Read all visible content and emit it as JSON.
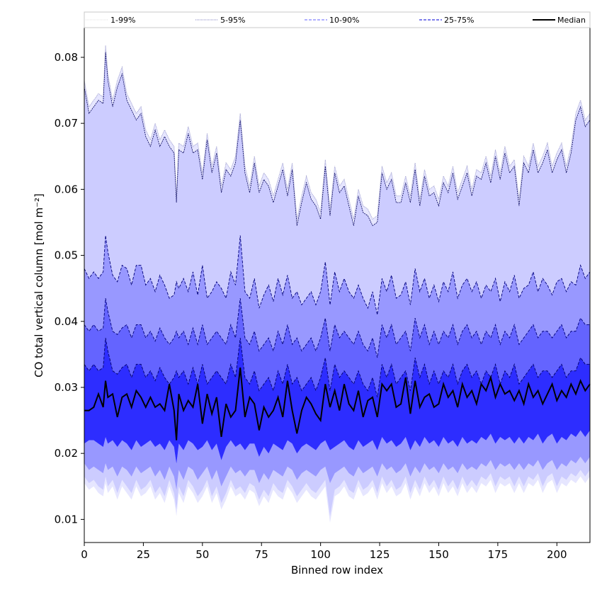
{
  "chart_data": {
    "type": "area",
    "title": "",
    "xlabel": "Binned row index",
    "ylabel": "CO total vertical column [mol m⁻²]",
    "xlim": [
      0,
      214
    ],
    "ylim": [
      0.0065,
      0.0845
    ],
    "xticks": [
      0,
      25,
      50,
      75,
      100,
      125,
      150,
      175,
      200
    ],
    "yticks": [
      0.01,
      0.02,
      0.03,
      0.04,
      0.05,
      0.06,
      0.07,
      0.08
    ],
    "yticks_labels": [
      "0.01",
      "0.02",
      "0.03",
      "0.04",
      "0.05",
      "0.06",
      "0.07",
      "0.08"
    ],
    "grid": false,
    "legend_position": "top, spanning full width above plot",
    "legend": [
      {
        "name": "1-99%",
        "style": "dotted",
        "color": "#e0e0e0"
      },
      {
        "name": "5-95%",
        "style": "dotted",
        "color": "#8080c0"
      },
      {
        "name": "10-90%",
        "style": "dashed",
        "color": "#8080ff"
      },
      {
        "name": "25-75%",
        "style": "dashed",
        "color": "#3030e0"
      },
      {
        "name": "Median",
        "style": "solid",
        "color": "#000000"
      }
    ],
    "band_colors": [
      "#ccccff",
      "#9898ff",
      "#6464ff",
      "#2d2dff"
    ],
    "x": [
      0,
      2,
      4,
      6,
      8,
      9,
      10,
      12,
      14,
      16,
      18,
      20,
      22,
      24,
      26,
      28,
      30,
      32,
      34,
      36,
      38,
      39,
      40,
      42,
      44,
      46,
      48,
      50,
      52,
      54,
      56,
      58,
      60,
      62,
      64,
      66,
      68,
      70,
      72,
      74,
      76,
      78,
      80,
      82,
      84,
      86,
      88,
      90,
      92,
      94,
      96,
      98,
      100,
      102,
      104,
      106,
      108,
      110,
      112,
      114,
      116,
      118,
      120,
      122,
      124,
      126,
      128,
      130,
      132,
      134,
      136,
      138,
      140,
      142,
      144,
      146,
      148,
      150,
      152,
      154,
      156,
      158,
      160,
      162,
      164,
      166,
      168,
      170,
      172,
      174,
      176,
      178,
      180,
      182,
      184,
      186,
      188,
      190,
      192,
      194,
      196,
      198,
      200,
      202,
      204,
      206,
      208,
      210,
      212,
      214
    ],
    "p95": [
      0.0755,
      0.0715,
      0.0725,
      0.0735,
      0.073,
      0.0808,
      0.0765,
      0.0725,
      0.0755,
      0.0775,
      0.0735,
      0.072,
      0.0705,
      0.0715,
      0.068,
      0.0665,
      0.069,
      0.0665,
      0.068,
      0.0665,
      0.0655,
      0.058,
      0.066,
      0.0655,
      0.0685,
      0.0655,
      0.066,
      0.0615,
      0.0675,
      0.0625,
      0.0655,
      0.0595,
      0.063,
      0.062,
      0.064,
      0.0705,
      0.0625,
      0.0595,
      0.064,
      0.0595,
      0.0615,
      0.0605,
      0.058,
      0.0605,
      0.063,
      0.059,
      0.063,
      0.0545,
      0.058,
      0.061,
      0.0585,
      0.0575,
      0.0555,
      0.0635,
      0.056,
      0.0625,
      0.0595,
      0.0605,
      0.0575,
      0.0545,
      0.059,
      0.0565,
      0.056,
      0.0545,
      0.055,
      0.0625,
      0.06,
      0.0615,
      0.058,
      0.058,
      0.061,
      0.058,
      0.063,
      0.0575,
      0.062,
      0.059,
      0.0595,
      0.0575,
      0.061,
      0.0595,
      0.0625,
      0.0585,
      0.0605,
      0.0625,
      0.059,
      0.062,
      0.0615,
      0.064,
      0.061,
      0.065,
      0.0615,
      0.0655,
      0.0625,
      0.0635,
      0.0575,
      0.064,
      0.0625,
      0.066,
      0.0625,
      0.064,
      0.066,
      0.0625,
      0.0645,
      0.066,
      0.0625,
      0.0655,
      0.0705,
      0.0725,
      0.0695,
      0.0705
    ],
    "p90": [
      0.048,
      0.0465,
      0.0475,
      0.0465,
      0.0475,
      0.053,
      0.0505,
      0.047,
      0.046,
      0.0485,
      0.048,
      0.0455,
      0.0485,
      0.0485,
      0.0455,
      0.0465,
      0.0445,
      0.047,
      0.0455,
      0.0435,
      0.044,
      0.046,
      0.045,
      0.0465,
      0.0445,
      0.0475,
      0.044,
      0.0485,
      0.0435,
      0.0445,
      0.046,
      0.045,
      0.0435,
      0.0475,
      0.0455,
      0.053,
      0.0445,
      0.0435,
      0.0465,
      0.042,
      0.044,
      0.0455,
      0.043,
      0.0465,
      0.044,
      0.047,
      0.0435,
      0.0445,
      0.0425,
      0.0435,
      0.0445,
      0.0425,
      0.0445,
      0.049,
      0.0425,
      0.0475,
      0.0445,
      0.0465,
      0.0445,
      0.0435,
      0.0455,
      0.0435,
      0.042,
      0.0445,
      0.041,
      0.0465,
      0.0445,
      0.047,
      0.0435,
      0.044,
      0.046,
      0.0425,
      0.048,
      0.0445,
      0.0465,
      0.0435,
      0.0455,
      0.043,
      0.046,
      0.0445,
      0.0475,
      0.0435,
      0.0455,
      0.0465,
      0.0445,
      0.046,
      0.0435,
      0.0455,
      0.0445,
      0.0465,
      0.043,
      0.046,
      0.0445,
      0.047,
      0.0435,
      0.045,
      0.0455,
      0.0475,
      0.0445,
      0.0465,
      0.0455,
      0.044,
      0.046,
      0.0465,
      0.0445,
      0.046,
      0.0455,
      0.0485,
      0.0465,
      0.0475
    ],
    "p75": [
      0.0395,
      0.0385,
      0.0395,
      0.0385,
      0.039,
      0.0435,
      0.0415,
      0.0385,
      0.038,
      0.039,
      0.0395,
      0.0375,
      0.0395,
      0.0395,
      0.0375,
      0.0385,
      0.037,
      0.039,
      0.0375,
      0.0365,
      0.0375,
      0.0385,
      0.0375,
      0.0385,
      0.0365,
      0.039,
      0.0365,
      0.0395,
      0.0365,
      0.0375,
      0.0385,
      0.0375,
      0.0365,
      0.0395,
      0.0375,
      0.0435,
      0.0375,
      0.0365,
      0.0385,
      0.0355,
      0.0365,
      0.0375,
      0.0355,
      0.0385,
      0.0365,
      0.0395,
      0.0365,
      0.0375,
      0.0355,
      0.0365,
      0.0375,
      0.0355,
      0.0375,
      0.0405,
      0.0355,
      0.0395,
      0.0375,
      0.0385,
      0.0375,
      0.0365,
      0.0385,
      0.0365,
      0.0355,
      0.0375,
      0.0345,
      0.0395,
      0.0375,
      0.0395,
      0.0365,
      0.0375,
      0.0385,
      0.0355,
      0.0405,
      0.0375,
      0.0395,
      0.0365,
      0.0385,
      0.0365,
      0.0385,
      0.0375,
      0.0395,
      0.0365,
      0.0385,
      0.0395,
      0.0375,
      0.0385,
      0.0365,
      0.0385,
      0.0375,
      0.0395,
      0.0365,
      0.0385,
      0.0375,
      0.0395,
      0.0365,
      0.0375,
      0.0385,
      0.0395,
      0.0375,
      0.0385,
      0.0385,
      0.0375,
      0.0385,
      0.0395,
      0.0375,
      0.0385,
      0.0385,
      0.0405,
      0.0395,
      0.0395
    ],
    "p50": [
      0.0335,
      0.0325,
      0.0335,
      0.0325,
      0.033,
      0.0375,
      0.0355,
      0.0325,
      0.032,
      0.033,
      0.0335,
      0.0315,
      0.0335,
      0.0335,
      0.0315,
      0.0325,
      0.031,
      0.033,
      0.0315,
      0.0305,
      0.0315,
      0.0325,
      0.0315,
      0.0325,
      0.0305,
      0.033,
      0.0305,
      0.0335,
      0.0305,
      0.0315,
      0.0325,
      0.0315,
      0.0305,
      0.0335,
      0.0315,
      0.0375,
      0.0315,
      0.0305,
      0.0325,
      0.0295,
      0.0305,
      0.0315,
      0.0295,
      0.0325,
      0.0305,
      0.0335,
      0.0305,
      0.0315,
      0.0295,
      0.0305,
      0.0315,
      0.0295,
      0.0315,
      0.0345,
      0.0295,
      0.0335,
      0.0315,
      0.0325,
      0.0315,
      0.0305,
      0.0325,
      0.0305,
      0.0295,
      0.0315,
      0.0285,
      0.0335,
      0.0315,
      0.0335,
      0.0305,
      0.0315,
      0.0325,
      0.0295,
      0.0345,
      0.0315,
      0.0335,
      0.0305,
      0.0325,
      0.0305,
      0.0325,
      0.0315,
      0.0335,
      0.0305,
      0.0325,
      0.0335,
      0.0315,
      0.0325,
      0.0305,
      0.0325,
      0.0315,
      0.0335,
      0.0305,
      0.0325,
      0.0315,
      0.0335,
      0.0305,
      0.0315,
      0.0325,
      0.0335,
      0.0315,
      0.0325,
      0.0325,
      0.0315,
      0.0325,
      0.0335,
      0.0315,
      0.0325,
      0.0325,
      0.0345,
      0.0335,
      0.0335
    ],
    "median": [
      0.0265,
      0.0265,
      0.027,
      0.029,
      0.027,
      0.031,
      0.0285,
      0.029,
      0.0255,
      0.0285,
      0.029,
      0.027,
      0.0295,
      0.0285,
      0.027,
      0.0285,
      0.027,
      0.0275,
      0.0265,
      0.0305,
      0.0265,
      0.022,
      0.029,
      0.0265,
      0.028,
      0.027,
      0.0305,
      0.0245,
      0.029,
      0.026,
      0.0285,
      0.0225,
      0.0275,
      0.0255,
      0.0265,
      0.033,
      0.0255,
      0.0285,
      0.0275,
      0.0235,
      0.027,
      0.0255,
      0.0265,
      0.0285,
      0.0255,
      0.031,
      0.0265,
      0.023,
      0.0265,
      0.0285,
      0.0275,
      0.026,
      0.025,
      0.0305,
      0.027,
      0.0295,
      0.0265,
      0.0305,
      0.0275,
      0.0265,
      0.0295,
      0.0255,
      0.028,
      0.0285,
      0.0255,
      0.0305,
      0.0295,
      0.0305,
      0.027,
      0.0275,
      0.0315,
      0.026,
      0.031,
      0.027,
      0.0285,
      0.029,
      0.027,
      0.0275,
      0.0305,
      0.0285,
      0.0295,
      0.027,
      0.0305,
      0.0285,
      0.0295,
      0.0275,
      0.0305,
      0.0295,
      0.0315,
      0.0285,
      0.0305,
      0.029,
      0.0295,
      0.028,
      0.0295,
      0.0275,
      0.0305,
      0.0285,
      0.0295,
      0.0275,
      0.029,
      0.0305,
      0.028,
      0.0295,
      0.0285,
      0.0305,
      0.029,
      0.031,
      0.0295,
      0.0305
    ],
    "p25": [
      0.0215,
      0.022,
      0.022,
      0.0215,
      0.021,
      0.0225,
      0.0215,
      0.022,
      0.021,
      0.022,
      0.0215,
      0.0205,
      0.022,
      0.021,
      0.0215,
      0.022,
      0.021,
      0.0215,
      0.0205,
      0.022,
      0.021,
      0.0185,
      0.0215,
      0.0205,
      0.022,
      0.0215,
      0.0205,
      0.021,
      0.022,
      0.0205,
      0.0215,
      0.019,
      0.021,
      0.022,
      0.021,
      0.0215,
      0.0205,
      0.0215,
      0.0215,
      0.0195,
      0.021,
      0.02,
      0.0215,
      0.021,
      0.0205,
      0.022,
      0.0215,
      0.02,
      0.021,
      0.0215,
      0.021,
      0.0205,
      0.0215,
      0.022,
      0.0205,
      0.021,
      0.0215,
      0.022,
      0.021,
      0.0205,
      0.022,
      0.021,
      0.0215,
      0.022,
      0.0205,
      0.0225,
      0.0215,
      0.022,
      0.021,
      0.0215,
      0.0225,
      0.0205,
      0.022,
      0.021,
      0.0225,
      0.0215,
      0.022,
      0.021,
      0.0225,
      0.0215,
      0.022,
      0.021,
      0.0225,
      0.0215,
      0.022,
      0.0215,
      0.0225,
      0.022,
      0.023,
      0.0215,
      0.0225,
      0.022,
      0.0225,
      0.0215,
      0.0225,
      0.0215,
      0.0225,
      0.022,
      0.023,
      0.0215,
      0.0225,
      0.023,
      0.0215,
      0.0225,
      0.022,
      0.023,
      0.0225,
      0.0235,
      0.0225,
      0.0235
    ],
    "p10": [
      0.0185,
      0.0175,
      0.018,
      0.0175,
      0.017,
      0.0185,
      0.0175,
      0.018,
      0.0165,
      0.018,
      0.0175,
      0.0165,
      0.018,
      0.017,
      0.0175,
      0.018,
      0.0165,
      0.0175,
      0.016,
      0.018,
      0.0165,
      0.0145,
      0.0175,
      0.016,
      0.018,
      0.0175,
      0.016,
      0.017,
      0.018,
      0.016,
      0.0175,
      0.015,
      0.0165,
      0.018,
      0.017,
      0.0175,
      0.0165,
      0.0175,
      0.0175,
      0.0155,
      0.017,
      0.016,
      0.0175,
      0.017,
      0.0165,
      0.018,
      0.0175,
      0.016,
      0.017,
      0.0175,
      0.017,
      0.0165,
      0.0175,
      0.018,
      0.0155,
      0.017,
      0.0175,
      0.018,
      0.017,
      0.0165,
      0.018,
      0.017,
      0.0175,
      0.018,
      0.0165,
      0.0185,
      0.0175,
      0.018,
      0.017,
      0.0175,
      0.0185,
      0.0165,
      0.018,
      0.017,
      0.0185,
      0.0175,
      0.018,
      0.017,
      0.0185,
      0.0175,
      0.018,
      0.017,
      0.0185,
      0.0175,
      0.018,
      0.0175,
      0.0185,
      0.018,
      0.019,
      0.0175,
      0.0185,
      0.018,
      0.0185,
      0.0175,
      0.0185,
      0.0175,
      0.0185,
      0.018,
      0.019,
      0.0175,
      0.0185,
      0.019,
      0.0175,
      0.0185,
      0.018,
      0.019,
      0.0185,
      0.0195,
      0.0185,
      0.0195
    ],
    "p5": [
      0.0165,
      0.0155,
      0.016,
      0.015,
      0.0145,
      0.0165,
      0.015,
      0.016,
      0.014,
      0.016,
      0.015,
      0.014,
      0.016,
      0.0145,
      0.015,
      0.016,
      0.014,
      0.015,
      0.0135,
      0.016,
      0.014,
      0.0115,
      0.015,
      0.0135,
      0.016,
      0.015,
      0.0135,
      0.0145,
      0.016,
      0.0135,
      0.015,
      0.0125,
      0.014,
      0.016,
      0.0145,
      0.015,
      0.014,
      0.0155,
      0.015,
      0.013,
      0.0145,
      0.0135,
      0.0155,
      0.0145,
      0.014,
      0.016,
      0.015,
      0.0135,
      0.0145,
      0.0155,
      0.0145,
      0.014,
      0.015,
      0.016,
      0.0105,
      0.0145,
      0.015,
      0.016,
      0.0145,
      0.014,
      0.016,
      0.0145,
      0.015,
      0.016,
      0.014,
      0.0165,
      0.015,
      0.016,
      0.0145,
      0.015,
      0.0165,
      0.014,
      0.016,
      0.0145,
      0.0165,
      0.015,
      0.016,
      0.0145,
      0.0165,
      0.015,
      0.016,
      0.0145,
      0.0165,
      0.015,
      0.016,
      0.015,
      0.0165,
      0.016,
      0.017,
      0.015,
      0.0165,
      0.016,
      0.0165,
      0.015,
      0.0165,
      0.015,
      0.0165,
      0.016,
      0.017,
      0.015,
      0.0165,
      0.017,
      0.015,
      0.0165,
      0.016,
      0.017,
      0.0165,
      0.0175,
      0.0165,
      0.0175
    ]
  }
}
